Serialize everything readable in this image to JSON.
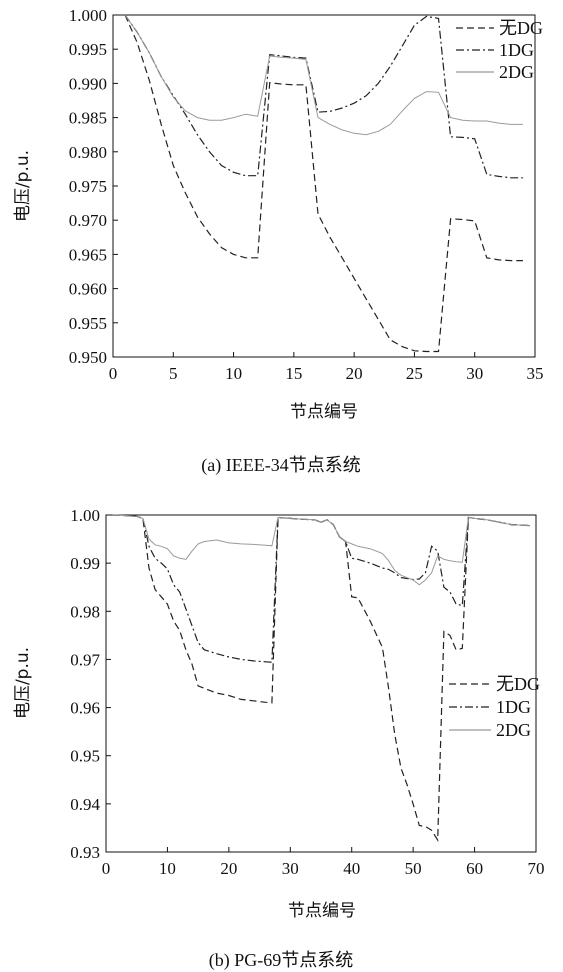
{
  "chart_data": [
    {
      "type": "line",
      "caption": "(a) IEEE-34节点系统",
      "xlabel": "节点编号",
      "ylabel": "电压/p.u.",
      "xlim": [
        0,
        35
      ],
      "ylim": [
        0.95,
        1.0
      ],
      "xticks": [
        0,
        5,
        10,
        15,
        20,
        25,
        30,
        35
      ],
      "yticks": [
        0.95,
        0.955,
        0.96,
        0.965,
        0.97,
        0.975,
        0.98,
        0.985,
        0.99,
        0.995,
        1.0
      ],
      "ytick_labels": [
        "0.950",
        "0.955",
        "0.960",
        "0.965",
        "0.970",
        "0.975",
        "0.980",
        "0.985",
        "0.990",
        "0.995",
        "1.000"
      ],
      "legend_position": "top-right",
      "series": [
        {
          "name": "无DG",
          "dash": "dashed",
          "color": "#222222",
          "x": [
            1,
            2,
            3,
            4,
            5,
            6,
            7,
            8,
            9,
            10,
            11,
            12,
            13,
            14,
            15,
            16,
            17,
            18,
            19,
            20,
            21,
            22,
            23,
            24,
            25,
            26,
            27,
            28,
            29,
            30,
            31,
            32,
            33,
            34
          ],
          "y": [
            1.0,
            0.996,
            0.9905,
            0.984,
            0.978,
            0.974,
            0.9705,
            0.968,
            0.966,
            0.965,
            0.9645,
            0.9645,
            0.9901,
            0.9899,
            0.9898,
            0.9898,
            0.9709,
            0.9675,
            0.9645,
            0.9615,
            0.9585,
            0.9555,
            0.9525,
            0.9515,
            0.9509,
            0.9508,
            0.9508,
            0.9702,
            0.9701,
            0.9699,
            0.9645,
            0.9642,
            0.9641,
            0.9641
          ]
        },
        {
          "name": "1DG",
          "dash": "dashdot",
          "color": "#222222",
          "x": [
            1,
            2,
            3,
            4,
            5,
            6,
            7,
            8,
            9,
            10,
            11,
            12,
            13,
            14,
            15,
            16,
            17,
            18,
            19,
            20,
            21,
            22,
            23,
            24,
            25,
            26,
            27,
            28,
            29,
            30,
            31,
            32,
            33,
            34
          ],
          "y": [
            1.0,
            0.9975,
            0.9945,
            0.991,
            0.9882,
            0.9855,
            0.9825,
            0.98,
            0.978,
            0.977,
            0.9765,
            0.9765,
            0.9942,
            0.994,
            0.9938,
            0.9937,
            0.9858,
            0.9859,
            0.9864,
            0.9871,
            0.9882,
            0.99,
            0.9925,
            0.9955,
            0.9985,
            0.9998,
            0.9995,
            0.9822,
            0.9821,
            0.9819,
            0.9767,
            0.9764,
            0.9762,
            0.9762
          ]
        },
        {
          "name": "2DG",
          "dash": "solid",
          "color": "#9a9a9a",
          "x": [
            1,
            2,
            3,
            4,
            5,
            6,
            7,
            8,
            9,
            10,
            11,
            12,
            13,
            14,
            15,
            16,
            17,
            18,
            19,
            20,
            21,
            22,
            23,
            24,
            25,
            26,
            27,
            28,
            29,
            30,
            31,
            32,
            33,
            34
          ],
          "y": [
            1.0,
            0.9975,
            0.9945,
            0.991,
            0.988,
            0.986,
            0.985,
            0.9846,
            0.9846,
            0.985,
            0.9855,
            0.9852,
            0.994,
            0.9938,
            0.9937,
            0.9935,
            0.985,
            0.984,
            0.9832,
            0.9827,
            0.9825,
            0.983,
            0.984,
            0.986,
            0.9878,
            0.9888,
            0.9887,
            0.985,
            0.9846,
            0.9845,
            0.9845,
            0.9842,
            0.984,
            0.984
          ]
        }
      ]
    },
    {
      "type": "line",
      "caption": "(b) PG-69节点系统",
      "xlabel": "节点编号",
      "ylabel": "电压/p.u.",
      "xlim": [
        0,
        70
      ],
      "ylim": [
        0.93,
        1.0
      ],
      "xticks": [
        0,
        10,
        20,
        30,
        40,
        50,
        60,
        70
      ],
      "yticks": [
        0.93,
        0.94,
        0.95,
        0.96,
        0.97,
        0.98,
        0.99,
        1.0
      ],
      "ytick_labels": [
        "0.93",
        "0.94",
        "0.95",
        "0.96",
        "0.97",
        "0.98",
        "0.99",
        "1.00"
      ],
      "legend_position": "right",
      "series": [
        {
          "name": "无DG",
          "dash": "dashed",
          "color": "#222222",
          "x": [
            1,
            3,
            5,
            6,
            7,
            8,
            9,
            10,
            11,
            12,
            13,
            14,
            15,
            16,
            18,
            20,
            22,
            24,
            26,
            27,
            28,
            30,
            32,
            34,
            35,
            36,
            37,
            38,
            39,
            40,
            41,
            43,
            45,
            46,
            47,
            48,
            49,
            50,
            51,
            52,
            53,
            54,
            55,
            56,
            57,
            58,
            59,
            60,
            62,
            64,
            66,
            69
          ],
          "y": [
            1.0,
            0.9999,
            0.9997,
            0.9993,
            0.989,
            0.9845,
            0.983,
            0.9815,
            0.978,
            0.976,
            0.972,
            0.969,
            0.9645,
            0.964,
            0.963,
            0.9625,
            0.9617,
            0.9614,
            0.9611,
            0.961,
            0.9995,
            0.9993,
            0.9991,
            0.999,
            0.9985,
            0.999,
            0.998,
            0.9955,
            0.9945,
            0.983,
            0.9828,
            0.978,
            0.9725,
            0.964,
            0.9545,
            0.9475,
            0.944,
            0.94,
            0.9355,
            0.9353,
            0.9345,
            0.9325,
            0.9758,
            0.975,
            0.972,
            0.9723,
            0.9995,
            0.9993,
            0.999,
            0.9985,
            0.998,
            0.9978
          ]
        },
        {
          "name": "1DG",
          "dash": "dashdot",
          "color": "#222222",
          "x": [
            1,
            3,
            5,
            6,
            7,
            8,
            9,
            10,
            11,
            12,
            13,
            14,
            15,
            16,
            18,
            20,
            22,
            24,
            26,
            27,
            28,
            30,
            32,
            34,
            35,
            36,
            37,
            38,
            39,
            40,
            41,
            43,
            45,
            46,
            47,
            48,
            49,
            50,
            51,
            52,
            53,
            54,
            55,
            56,
            57,
            58,
            59,
            60,
            62,
            64,
            66,
            69
          ],
          "y": [
            1.0,
            0.9999,
            0.9997,
            0.9993,
            0.9935,
            0.991,
            0.99,
            0.9888,
            0.9855,
            0.984,
            0.9805,
            0.977,
            0.9735,
            0.972,
            0.9712,
            0.9705,
            0.97,
            0.9697,
            0.9695,
            0.9694,
            0.9995,
            0.9993,
            0.9991,
            0.999,
            0.9985,
            0.999,
            0.998,
            0.9955,
            0.9945,
            0.991,
            0.9908,
            0.99,
            0.989,
            0.9887,
            0.988,
            0.987,
            0.9868,
            0.9866,
            0.9867,
            0.988,
            0.9935,
            0.9925,
            0.985,
            0.984,
            0.9815,
            0.9812,
            0.9995,
            0.9993,
            0.999,
            0.9985,
            0.998,
            0.9978
          ]
        },
        {
          "name": "2DG",
          "dash": "solid",
          "color": "#9a9a9a",
          "x": [
            1,
            3,
            5,
            6,
            7,
            8,
            9,
            10,
            11,
            12,
            13,
            14,
            15,
            16,
            18,
            20,
            22,
            24,
            26,
            27,
            28,
            30,
            32,
            34,
            35,
            36,
            37,
            38,
            39,
            40,
            41,
            43,
            45,
            46,
            47,
            48,
            49,
            50,
            51,
            52,
            53,
            54,
            55,
            56,
            57,
            58,
            59,
            60,
            62,
            64,
            66,
            69
          ],
          "y": [
            1.0,
            0.9999,
            0.9997,
            0.9993,
            0.995,
            0.9938,
            0.9935,
            0.993,
            0.9915,
            0.991,
            0.9908,
            0.9925,
            0.994,
            0.9945,
            0.9948,
            0.9942,
            0.994,
            0.9939,
            0.9937,
            0.9936,
            0.9995,
            0.9993,
            0.9991,
            0.999,
            0.9985,
            0.999,
            0.998,
            0.9955,
            0.9945,
            0.994,
            0.9935,
            0.993,
            0.992,
            0.9905,
            0.9885,
            0.9875,
            0.987,
            0.9865,
            0.9855,
            0.9865,
            0.988,
            0.9915,
            0.9908,
            0.9905,
            0.9903,
            0.9902,
            0.9995,
            0.9993,
            0.999,
            0.9985,
            0.998,
            0.9978
          ]
        }
      ]
    }
  ]
}
